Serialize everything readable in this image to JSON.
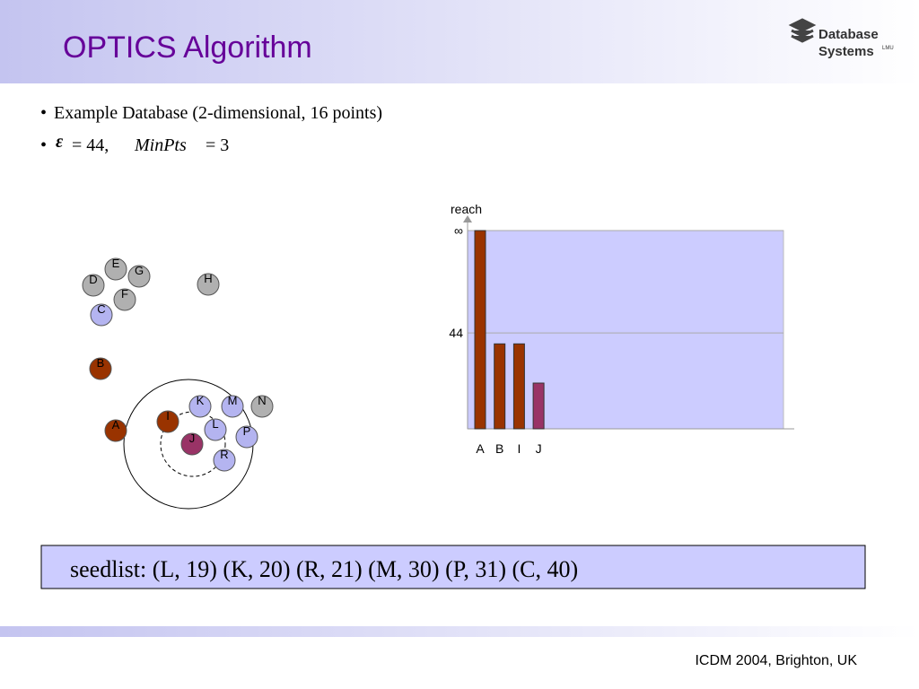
{
  "header": {
    "title": "OPTICS Algorithm",
    "logo": {
      "line1": "Database",
      "line2": "Systems",
      "badge": "LMU"
    }
  },
  "bullets": {
    "item1": "Example Database (2-dimensional, 16 points)",
    "item2": {
      "symbol": "ε",
      "eq1": "= 44,",
      "param": "MinPts",
      "eq2": "= 3"
    }
  },
  "points": {
    "nodes": [
      {
        "label": "E",
        "color": "#b0b0b0"
      },
      {
        "label": "G",
        "color": "#b0b0b0"
      },
      {
        "label": "D",
        "color": "#b0b0b0"
      },
      {
        "label": "H",
        "color": "#b0b0b0"
      },
      {
        "label": "F",
        "color": "#b0b0b0"
      },
      {
        "label": "C",
        "color": "#b4b4f0"
      },
      {
        "label": "B",
        "color": "#993300"
      },
      {
        "label": "A",
        "color": "#993300"
      },
      {
        "label": "K",
        "color": "#b4b4f0"
      },
      {
        "label": "M",
        "color": "#b4b4f0"
      },
      {
        "label": "N",
        "color": "#b0b0b0"
      },
      {
        "label": "I",
        "color": "#993300"
      },
      {
        "label": "L",
        "color": "#b4b4f0"
      },
      {
        "label": "P",
        "color": "#b4b4f0"
      },
      {
        "label": "J",
        "color": "#993366"
      },
      {
        "label": "R",
        "color": "#b4b4f0"
      }
    ]
  },
  "chart_data": {
    "type": "bar",
    "y_label": "reach",
    "categories": [
      "A",
      "B",
      "I",
      "J"
    ],
    "values": [
      91,
      39,
      39,
      21
    ],
    "colors": [
      "#993300",
      "#993300",
      "#993300",
      "#993366"
    ],
    "ylim": [
      0,
      91
    ],
    "yticks": [
      44,
      {
        "value": 91,
        "label": "∞"
      }
    ],
    "grid": true,
    "background": "#ccccff"
  },
  "seedlist": "seedlist:  (L, 19) (K, 20) (R, 21) (M, 30) (P, 31) (C, 40)",
  "footer": "ICDM  2004, Brighton, UK"
}
